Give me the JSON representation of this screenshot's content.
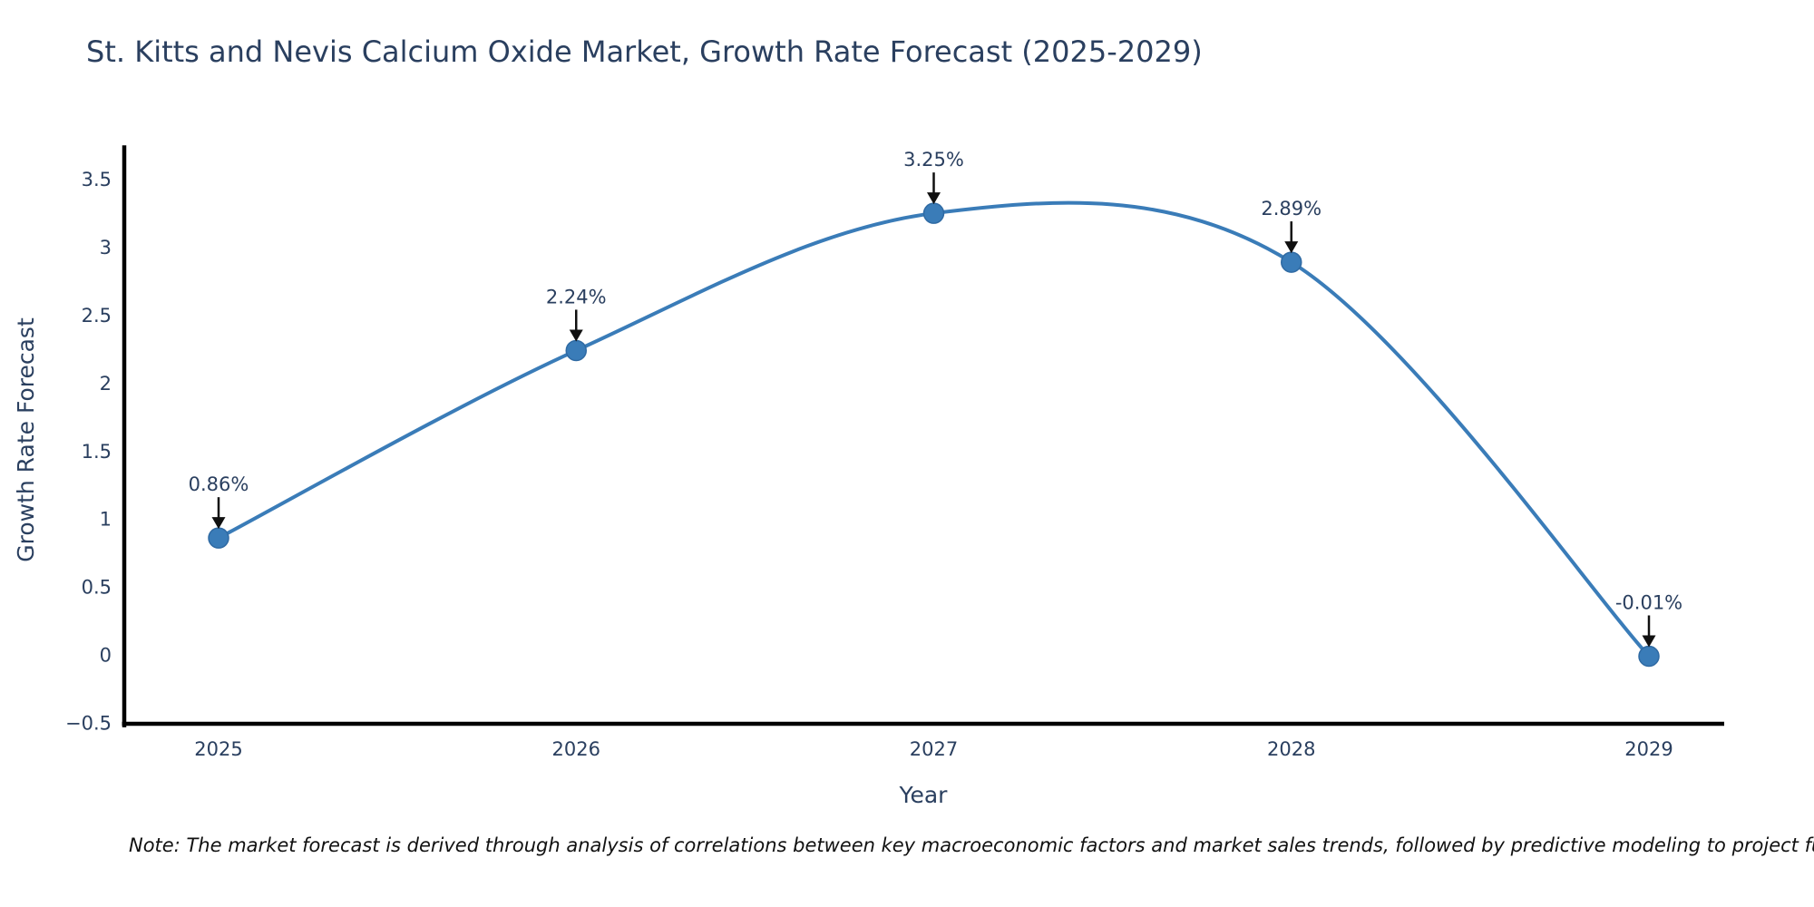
{
  "page": {
    "note": "Note: The market forecast is derived through analysis of correlations between key macroeconomic factors and market sales trends, followed by predictive modeling to project future sales."
  },
  "chart_data": {
    "type": "line",
    "title": "St. Kitts and Nevis Calcium Oxide Market, Growth Rate Forecast (2025-2029)",
    "xlabel": "Year",
    "ylabel": "Growth Rate Forecast",
    "line_shape": "spline",
    "grid": false,
    "legend": "none",
    "categories": [
      "2025",
      "2026",
      "2027",
      "2028",
      "2029"
    ],
    "values": [
      0.86,
      2.24,
      3.25,
      2.89,
      -0.01
    ],
    "point_labels": [
      "0.86%",
      "2.24%",
      "3.25%",
      "2.89%",
      "-0.01%"
    ],
    "x_tick_labels": [
      "2025",
      "2026",
      "2027",
      "2028",
      "2029"
    ],
    "y_ticks": [
      3.5,
      3,
      2.5,
      2,
      1.5,
      1,
      0.5,
      0,
      -0.5
    ],
    "y_tick_labels": [
      "3.5",
      "3",
      "2.5",
      "2",
      "1.5",
      "1",
      "0.5",
      "0",
      "−0.5"
    ],
    "ylim": [
      -0.52,
      3.75
    ],
    "colors": {
      "line": "#3a7cb8",
      "marker": "#3a7cb8",
      "marker_edge": "#2f6aa3",
      "axis": "#000000",
      "tick_text": "#2a3f5f",
      "annotation_text": "#2a3f5f",
      "annotation_arrow": "#101010"
    }
  }
}
